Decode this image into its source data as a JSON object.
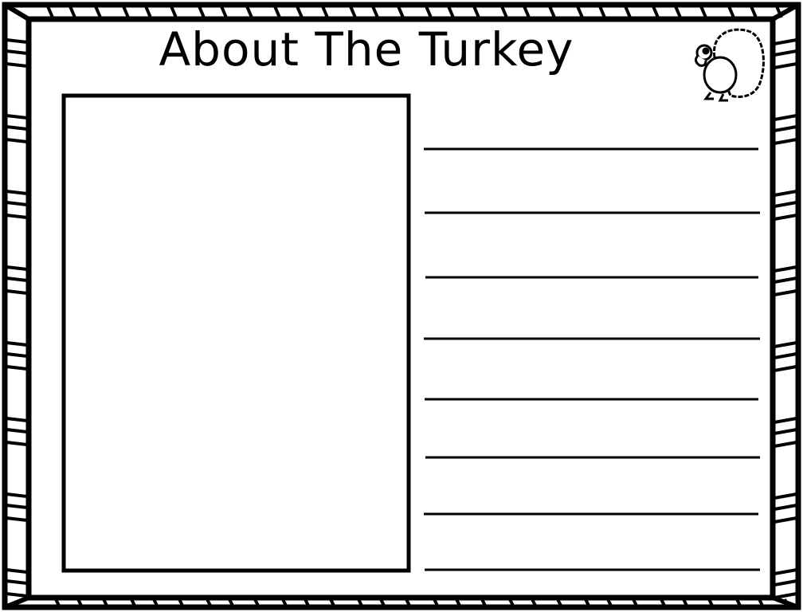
{
  "worksheet": {
    "title": "About The Turkey",
    "writing_lines_count": 8,
    "colors": {
      "ink": "#000000",
      "paper": "#ffffff"
    },
    "decoration_icon": "turkey-icon"
  }
}
